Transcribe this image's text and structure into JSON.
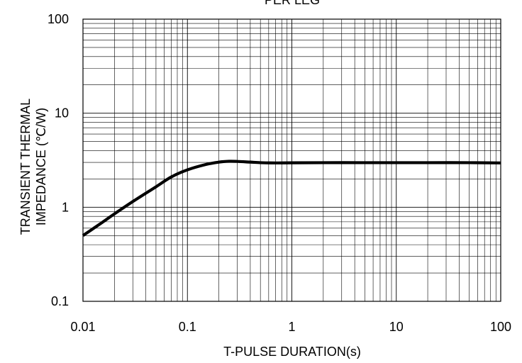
{
  "chart_data": {
    "type": "line",
    "title": "PER LEG",
    "xlabel": "T-PULSE DURATION(s)",
    "ylabel_lines": [
      "TRANSIENT THERMAL",
      "IMPEDANCE (℃/W)"
    ],
    "x_scale": "log",
    "y_scale": "log",
    "xlim": [
      0.01,
      100
    ],
    "ylim": [
      0.1,
      100
    ],
    "grid": true,
    "x_ticks": [
      {
        "value": 0.01,
        "label": "0.01"
      },
      {
        "value": 0.1,
        "label": "0.1"
      },
      {
        "value": 1,
        "label": "1"
      },
      {
        "value": 10,
        "label": "10"
      },
      {
        "value": 100,
        "label": "100"
      }
    ],
    "y_ticks": [
      {
        "value": 0.1,
        "label": "0.1"
      },
      {
        "value": 1,
        "label": "1"
      },
      {
        "value": 10,
        "label": "10"
      },
      {
        "value": 100,
        "label": "100"
      }
    ],
    "series": [
      {
        "color": "#000000",
        "x": [
          0.01,
          0.015,
          0.02,
          0.03,
          0.05,
          0.07,
          0.1,
          0.15,
          0.2,
          0.25,
          0.3,
          0.4,
          0.5,
          0.7,
          1,
          2,
          5,
          10,
          20,
          50,
          100
        ],
        "y": [
          0.5,
          0.68,
          0.85,
          1.15,
          1.65,
          2.1,
          2.5,
          2.85,
          3.02,
          3.08,
          3.07,
          3.02,
          2.98,
          2.96,
          2.97,
          2.98,
          2.98,
          2.98,
          2.98,
          2.98,
          2.96
        ]
      }
    ]
  }
}
